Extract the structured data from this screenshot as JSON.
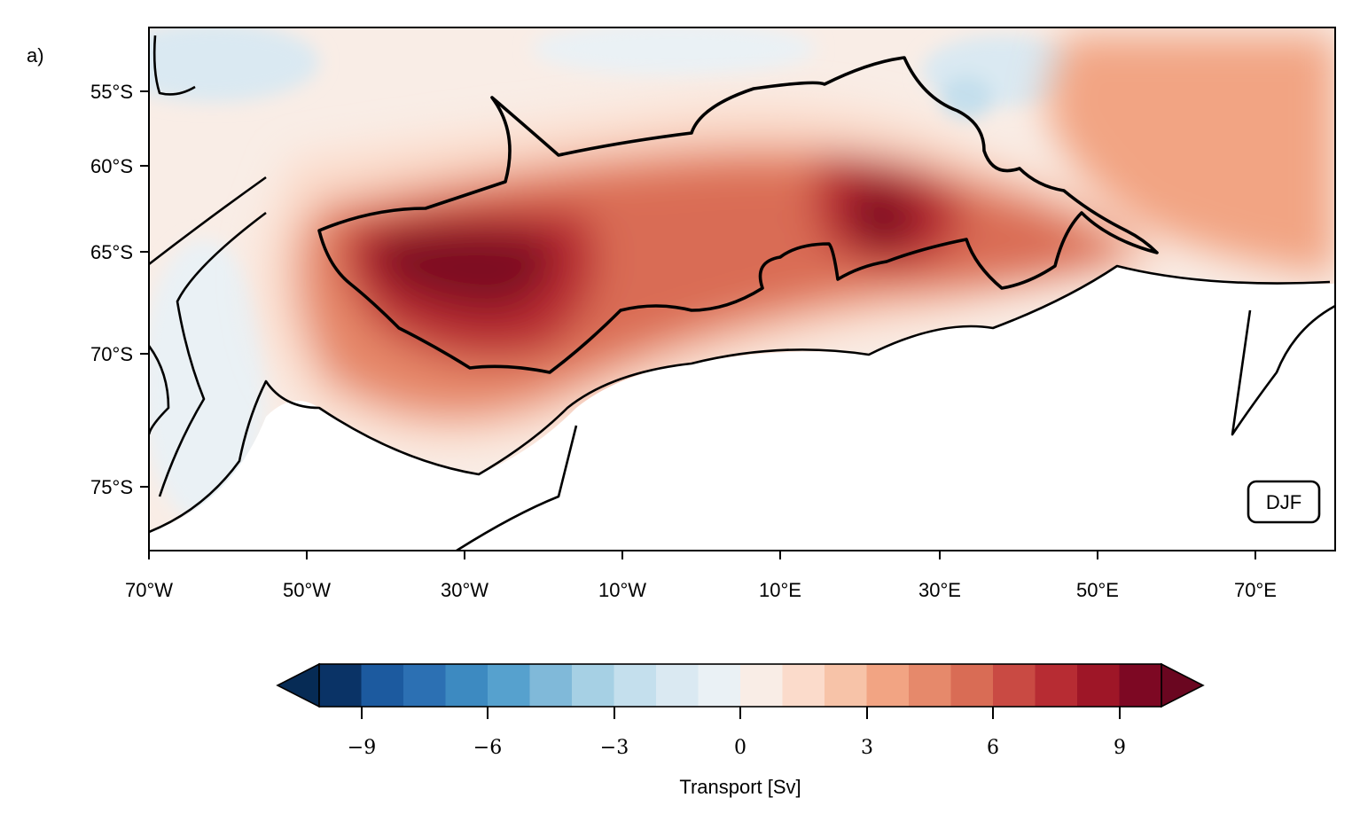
{
  "panel_label": "a)",
  "season_badge": "DJF",
  "lat_ticks": [
    "55°S",
    "60°S",
    "65°S",
    "70°S",
    "75°S"
  ],
  "lon_ticks": [
    "70°W",
    "50°W",
    "30°W",
    "10°W",
    "10°E",
    "30°E",
    "50°E",
    "70°E"
  ],
  "colorbar": {
    "label": "Transport [Sv]",
    "ticks": [
      "−9",
      "−6",
      "−3",
      "0",
      "3",
      "6",
      "9"
    ],
    "range": [
      -10,
      10
    ],
    "extend": "both",
    "colors": [
      "#0a3366",
      "#1c5a9f",
      "#2c70b3",
      "#3d8ac1",
      "#56a1ce",
      "#80b9d9",
      "#a6d0e4",
      "#c4dfed",
      "#dae9f2",
      "#eaf1f5",
      "#f9ede6",
      "#fbdbcb",
      "#f7c3a8",
      "#f2a483",
      "#e6896b",
      "#d96c55",
      "#c94a43",
      "#b72c33",
      "#9e1627",
      "#7d0823"
    ],
    "under_color": "#062b55",
    "over_color": "#6a0620"
  },
  "colors": {
    "land": "#ffffff",
    "coast": "#000000",
    "neutral_ocean": "#eaf1f5"
  }
}
